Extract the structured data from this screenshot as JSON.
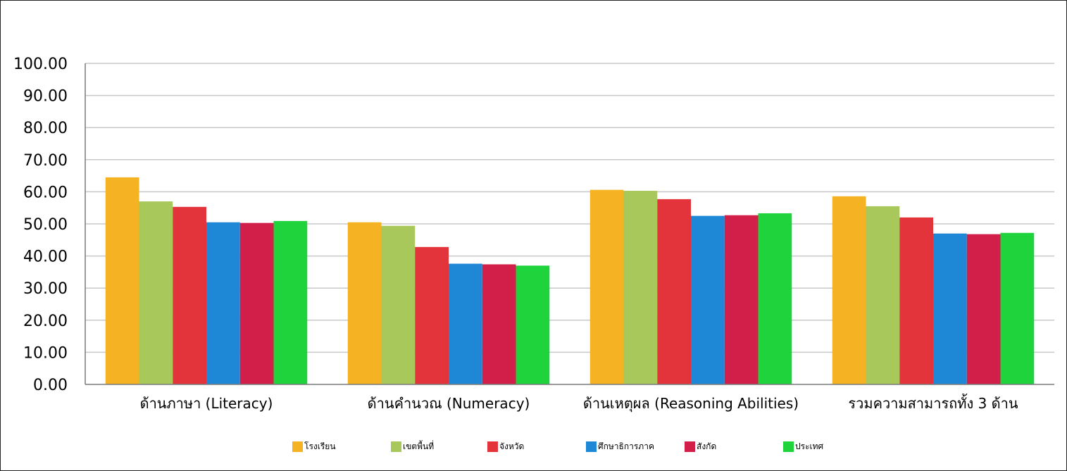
{
  "chart_data": {
    "type": "bar",
    "categories": [
      "ด้านภาษา (Literacy)",
      "ด้านคำนวณ (Numeracy)",
      "ด้านเหตุผล (Reasoning Abilities)",
      "รวมความสามารถทั้ง 3 ด้าน"
    ],
    "series": [
      {
        "name": "โรงเรียน",
        "color": "#f5b223",
        "values": [
          64.5,
          50.5,
          60.6,
          58.6
        ]
      },
      {
        "name": "เขตพื้นที่",
        "color": "#a9c85c",
        "values": [
          57.0,
          49.4,
          60.3,
          55.5
        ]
      },
      {
        "name": "จังหวัด",
        "color": "#e3343b",
        "values": [
          55.3,
          42.8,
          57.7,
          52.0
        ]
      },
      {
        "name": "ศึกษาธิการภาค",
        "color": "#1f88d6",
        "values": [
          50.5,
          37.6,
          52.5,
          47.0
        ]
      },
      {
        "name": "สังกัด",
        "color": "#d21f49",
        "values": [
          50.3,
          37.4,
          52.7,
          46.8
        ]
      },
      {
        "name": "ประเทศ",
        "color": "#1fd33c",
        "values": [
          50.9,
          37.0,
          53.3,
          47.2
        ]
      }
    ],
    "yticks": [
      "0.00",
      "10.00",
      "20.00",
      "30.00",
      "40.00",
      "50.00",
      "60.00",
      "70.00",
      "80.00",
      "90.00",
      "100.00"
    ],
    "ylim": [
      0,
      100
    ],
    "grid": true,
    "legend_position": "bottom"
  }
}
